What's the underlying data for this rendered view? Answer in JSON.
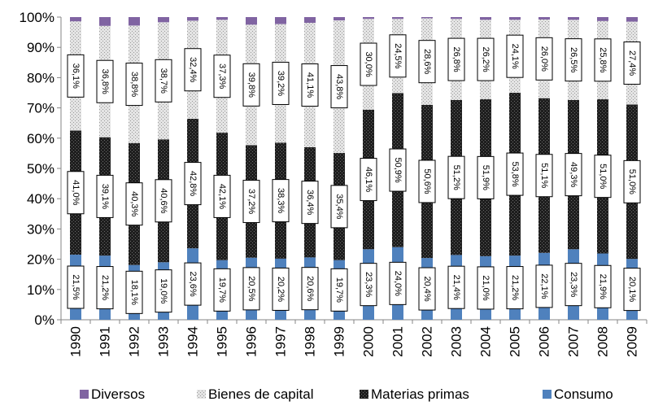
{
  "chart_data": {
    "type": "bar",
    "stacked": true,
    "categories": [
      "1990",
      "1991",
      "1992",
      "1993",
      "1994",
      "1995",
      "1996",
      "1997",
      "1998",
      "1999",
      "2000",
      "2001",
      "2002",
      "2003",
      "2004",
      "2005",
      "2006",
      "2007",
      "2008",
      "2009"
    ],
    "ylim": [
      0,
      100
    ],
    "yticks": [
      "0%",
      "10%",
      "20%",
      "30%",
      "40%",
      "50%",
      "60%",
      "70%",
      "80%",
      "90%",
      "100%"
    ],
    "grid": false,
    "legend_position": "bottom",
    "series": [
      {
        "name": "Consumo",
        "color": "#4f81bd",
        "values": [
          21.5,
          21.2,
          18.1,
          19.0,
          23.6,
          19.7,
          20.5,
          20.2,
          20.6,
          19.7,
          23.3,
          24.0,
          20.4,
          21.4,
          21.0,
          21.2,
          22.1,
          23.3,
          21.9,
          20.1
        ],
        "labels": [
          "21,5%",
          "21,2%",
          "18,1%",
          "19,0%",
          "23,6%",
          "19,7%",
          "20,5%",
          "20,2%",
          "20,6%",
          "19,7%",
          "23,3%",
          "24,0%",
          "20,4%",
          "21,4%",
          "21,0%",
          "21,2%",
          "22,1%",
          "23,3%",
          "21,9%",
          "20,1%"
        ]
      },
      {
        "name": "Materias primas",
        "color": "#262626",
        "values": [
          41.0,
          39.1,
          40.3,
          40.6,
          42.8,
          42.1,
          37.2,
          38.3,
          36.4,
          35.4,
          46.1,
          50.9,
          50.6,
          51.2,
          51.9,
          53.8,
          51.1,
          49.3,
          51.0,
          51.0
        ],
        "labels": [
          "41,0%",
          "39,1%",
          "40,3%",
          "40,6%",
          "42,8%",
          "42,1%",
          "37,2%",
          "38,3%",
          "36,4%",
          "35,4%",
          "46,1%",
          "50,9%",
          "50,6%",
          "51,2%",
          "51,9%",
          "53,8%",
          "51,1%",
          "49,3%",
          "51,0%",
          "51,0%"
        ]
      },
      {
        "name": "Bienes de capital",
        "color": "#c8c8c8",
        "values": [
          36.1,
          36.8,
          38.8,
          38.7,
          32.4,
          37.3,
          39.8,
          39.2,
          41.1,
          43.8,
          30.0,
          24.5,
          28.6,
          26.8,
          26.2,
          24.1,
          26.0,
          26.5,
          25.8,
          27.4
        ],
        "labels": [
          "36,1%",
          "36,8%",
          "38,8%",
          "38,7%",
          "32,4%",
          "37,3%",
          "39,8%",
          "39,2%",
          "41,1%",
          "43,8%",
          "30,0%",
          "24,5%",
          "28,6%",
          "26,8%",
          "26,2%",
          "24,1%",
          "26,0%",
          "26,5%",
          "25,8%",
          "27,4%"
        ]
      },
      {
        "name": "Diversos",
        "color": "#8064a2",
        "values": [
          1.4,
          2.9,
          2.8,
          1.7,
          1.2,
          0.9,
          2.5,
          2.3,
          1.9,
          1.1,
          0.6,
          0.6,
          0.4,
          0.6,
          0.9,
          0.9,
          0.8,
          0.9,
          1.3,
          1.5
        ]
      }
    ]
  }
}
